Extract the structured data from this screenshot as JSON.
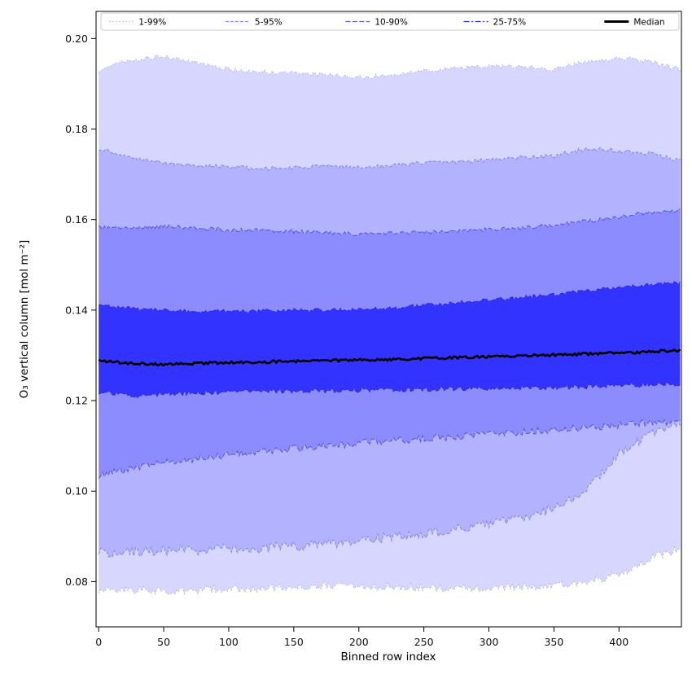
{
  "chart_data": {
    "type": "area",
    "title": "",
    "xlabel": "Binned row index",
    "ylabel": "O₃ vertical column [mol m⁻²]",
    "xlim": [
      -2,
      448
    ],
    "ylim": [
      0.07,
      0.206
    ],
    "grid": false,
    "legend_position": "top",
    "xticks": [
      0,
      50,
      100,
      150,
      200,
      250,
      300,
      350,
      400
    ],
    "xticklabels": [
      "0",
      "50",
      "100",
      "150",
      "200",
      "250",
      "300",
      "350",
      "400"
    ],
    "yticks": [
      0.08,
      0.1,
      0.12,
      0.14,
      0.16,
      0.18,
      0.2
    ],
    "yticklabels": [
      "0.08",
      "0.10",
      "0.12",
      "0.14",
      "0.16",
      "0.18",
      "0.20"
    ],
    "x": [
      0,
      25,
      50,
      75,
      100,
      125,
      150,
      175,
      200,
      225,
      250,
      275,
      300,
      325,
      350,
      375,
      400,
      425,
      447
    ],
    "bands": [
      {
        "label": "1-99%",
        "fill": "#d6d6ff",
        "edge": "#b0b0f2",
        "dash": "1.5 2.5",
        "lower": [
          0.078,
          0.0781,
          0.078,
          0.0781,
          0.0783,
          0.0786,
          0.0789,
          0.0791,
          0.079,
          0.0788,
          0.0786,
          0.0785,
          0.0786,
          0.0788,
          0.0791,
          0.0797,
          0.0815,
          0.0852,
          0.0873
        ],
        "upper": [
          0.193,
          0.1953,
          0.196,
          0.1946,
          0.1931,
          0.1926,
          0.1924,
          0.192,
          0.1914,
          0.1919,
          0.1929,
          0.1934,
          0.1939,
          0.1937,
          0.1931,
          0.1949,
          0.1957,
          0.1949,
          0.1931
        ]
      },
      {
        "label": "5-95%",
        "fill": "#b2b2ff",
        "edge": "#8a8aec",
        "dash": "4 2",
        "lower": [
          0.0865,
          0.0866,
          0.0868,
          0.087,
          0.0872,
          0.0875,
          0.0878,
          0.0884,
          0.089,
          0.0898,
          0.0906,
          0.0915,
          0.0926,
          0.0941,
          0.0962,
          0.1002,
          0.1082,
          0.1126,
          0.1148
        ],
        "upper": [
          0.1756,
          0.1736,
          0.1726,
          0.172,
          0.1717,
          0.1712,
          0.1715,
          0.1718,
          0.1714,
          0.172,
          0.1725,
          0.1728,
          0.1731,
          0.1736,
          0.1741,
          0.1757,
          0.1752,
          0.1746,
          0.1731
        ]
      },
      {
        "label": "10-90%",
        "fill": "#8c8cff",
        "edge": "#5a5ae0",
        "dash": "6 2.5",
        "lower": [
          0.1035,
          0.1051,
          0.1063,
          0.1072,
          0.108,
          0.1088,
          0.1094,
          0.11,
          0.1106,
          0.1111,
          0.1116,
          0.1121,
          0.1126,
          0.1131,
          0.1136,
          0.1141,
          0.1146,
          0.1151,
          0.1154
        ],
        "upper": [
          0.1582,
          0.158,
          0.1585,
          0.1581,
          0.1577,
          0.1576,
          0.1574,
          0.1571,
          0.1567,
          0.157,
          0.1572,
          0.1575,
          0.1578,
          0.1582,
          0.1588,
          0.1596,
          0.1606,
          0.1616,
          0.1621
        ]
      },
      {
        "label": "25-75%",
        "fill": "#3333ff",
        "edge": "#2b2bd4",
        "dash": "7 2.5 2 2.5",
        "lower": [
          0.1218,
          0.1211,
          0.1214,
          0.1217,
          0.1219,
          0.122,
          0.1221,
          0.1222,
          0.1223,
          0.1224,
          0.1225,
          0.1226,
          0.1227,
          0.1228,
          0.1229,
          0.1231,
          0.1233,
          0.1235,
          0.1237
        ],
        "upper": [
          0.1412,
          0.1404,
          0.14,
          0.1398,
          0.1397,
          0.1398,
          0.14,
          0.14,
          0.1402,
          0.1405,
          0.141,
          0.1416,
          0.1422,
          0.1428,
          0.1435,
          0.1442,
          0.145,
          0.1456,
          0.1461
        ]
      }
    ],
    "median": {
      "label": "Median",
      "color": "#000000",
      "width": 2.6,
      "values": [
        0.1288,
        0.1282,
        0.128,
        0.1282,
        0.1284,
        0.1285,
        0.1287,
        0.1288,
        0.129,
        0.1291,
        0.1293,
        0.1295,
        0.1297,
        0.1299,
        0.1301,
        0.1303,
        0.1305,
        0.1308,
        0.1311
      ]
    }
  }
}
